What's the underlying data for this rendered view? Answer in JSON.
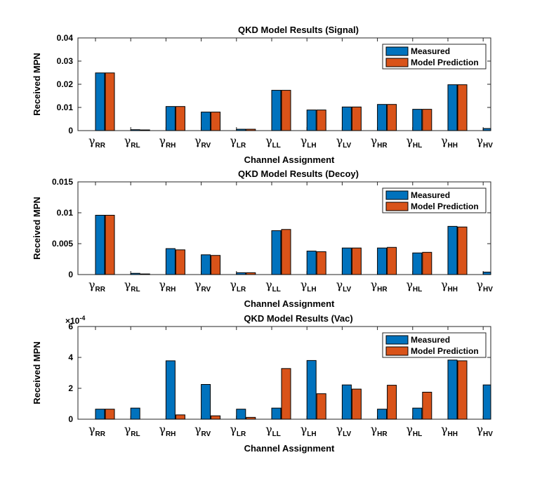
{
  "chart_data": [
    {
      "type": "bar",
      "title": "QKD Model Results (Signal)",
      "xlabel": "Channel Assignment",
      "ylabel": "Received MPN",
      "ylim": [
        0,
        0.04
      ],
      "yticks": [
        0,
        0.01,
        0.02,
        0.03,
        0.04
      ],
      "ytick_labels": [
        "0",
        "0.01",
        "0.02",
        "0.03",
        "0.04"
      ],
      "exponent_label": "",
      "categories": [
        "RR",
        "RL",
        "RH",
        "RV",
        "LR",
        "LL",
        "LH",
        "LV",
        "HR",
        "HL",
        "HH",
        "HV"
      ],
      "series": [
        {
          "name": "Measured",
          "color": "#0072BD",
          "values": [
            0.0249,
            0.0004,
            0.0104,
            0.008,
            0.0006,
            0.0174,
            0.0089,
            0.0102,
            0.0113,
            0.0092,
            0.0198,
            0.0009
          ]
        },
        {
          "name": "Model Prediction",
          "color": "#D95319",
          "values": [
            0.0249,
            0.0003,
            0.0104,
            0.008,
            0.0006,
            0.0174,
            0.0089,
            0.0102,
            0.0113,
            0.0092,
            0.0198,
            0.0
          ]
        }
      ],
      "legend": "top-right"
    },
    {
      "type": "bar",
      "title": "QKD Model Results (Decoy)",
      "xlabel": "Channel Assignment",
      "ylabel": "Received MPN",
      "ylim": [
        0,
        0.015
      ],
      "yticks": [
        0,
        0.005,
        0.01,
        0.015
      ],
      "ytick_labels": [
        "0",
        "0.005",
        "0.01",
        "0.015"
      ],
      "exponent_label": "",
      "categories": [
        "RR",
        "RL",
        "RH",
        "RV",
        "LR",
        "LL",
        "LH",
        "LV",
        "HR",
        "HL",
        "HH",
        "HV"
      ],
      "series": [
        {
          "name": "Measured",
          "color": "#0072BD",
          "values": [
            0.0096,
            0.0002,
            0.0042,
            0.0032,
            0.0003,
            0.0071,
            0.0038,
            0.0043,
            0.0043,
            0.0035,
            0.0078,
            0.0004
          ]
        },
        {
          "name": "Model Prediction",
          "color": "#D95319",
          "values": [
            0.0096,
            0.0001,
            0.004,
            0.0031,
            0.0003,
            0.0073,
            0.0037,
            0.0043,
            0.0044,
            0.0036,
            0.0077,
            0.0
          ]
        }
      ],
      "legend": "top-right"
    },
    {
      "type": "bar",
      "title": "QKD Model Results (Vac)",
      "xlabel": "Channel Assignment",
      "ylabel": "Received MPN",
      "ylim": [
        0,
        6
      ],
      "yticks": [
        0,
        2,
        4,
        6
      ],
      "ytick_labels": [
        "0",
        "2",
        "4",
        "6"
      ],
      "exponent_label": "×10",
      "exponent_power": "-4",
      "categories": [
        "RR",
        "RL",
        "RH",
        "RV",
        "LR",
        "LL",
        "LH",
        "LV",
        "HR",
        "HL",
        "HH",
        "HV"
      ],
      "series": [
        {
          "name": "Measured",
          "color": "#0072BD",
          "values": [
            0.65,
            0.72,
            3.78,
            2.25,
            0.65,
            0.72,
            3.8,
            2.22,
            0.65,
            0.72,
            3.83,
            2.22
          ]
        },
        {
          "name": "Model Prediction",
          "color": "#D95319",
          "values": [
            0.65,
            0.0,
            0.28,
            0.22,
            0.12,
            3.28,
            1.65,
            1.95,
            2.2,
            1.75,
            3.78,
            0.0
          ]
        }
      ],
      "legend": "top-right"
    }
  ],
  "gamma_symbol": "γ"
}
